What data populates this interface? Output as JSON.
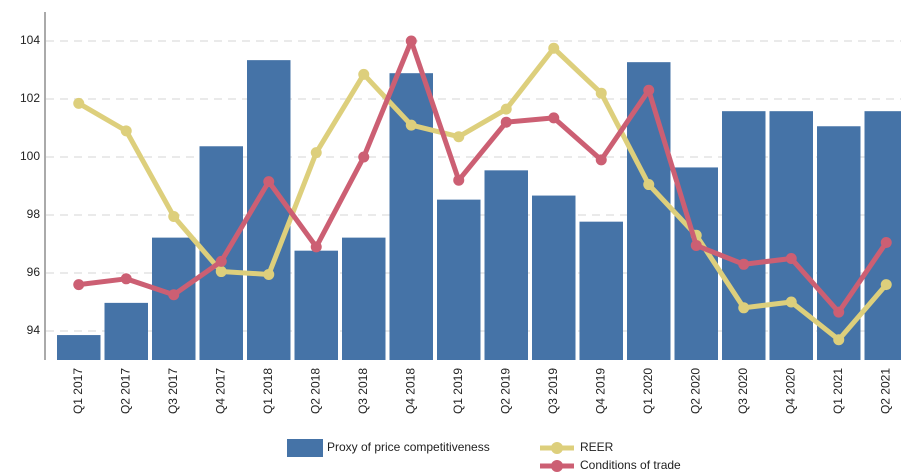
{
  "chart_data": {
    "type": "bar_line",
    "categories": [
      "Q1 2017",
      "Q2 2017",
      "Q3 2017",
      "Q4 2017",
      "Q1 2018",
      "Q2 2018",
      "Q3 2018",
      "Q4 2018",
      "Q1 2019",
      "Q2 2019",
      "Q3 2019",
      "Q4 2019",
      "Q1 2020",
      "Q2 2020",
      "Q3 2020",
      "Q4 2020",
      "Q1 2021",
      "Q2 2021"
    ],
    "series": [
      {
        "name": "Proxy of price competitiveness",
        "type": "bar",
        "color": "#4573a7",
        "values": [
          93.86,
          94.97,
          97.22,
          100.37,
          103.34,
          96.77,
          97.22,
          102.89,
          98.53,
          99.54,
          98.67,
          97.77,
          103.27,
          99.64,
          101.58,
          101.58,
          101.06,
          101.58
        ]
      },
      {
        "name": "REER",
        "type": "line",
        "color": "#ddcf7c",
        "values": [
          101.85,
          100.9,
          97.95,
          96.05,
          95.95,
          100.15,
          102.85,
          101.1,
          100.7,
          101.65,
          103.75,
          102.2,
          99.05,
          97.3,
          94.8,
          95.0,
          93.7,
          95.6
        ]
      },
      {
        "name": "Conditions of trade",
        "type": "line",
        "color": "#cc5f73",
        "values": [
          95.6,
          95.8,
          95.25,
          96.4,
          99.15,
          96.9,
          100.0,
          104.0,
          99.2,
          101.2,
          101.35,
          99.9,
          102.3,
          96.95,
          96.3,
          96.5,
          94.65,
          97.05
        ]
      }
    ],
    "ylim": [
      93,
      105
    ],
    "yticks": [
      94,
      96,
      98,
      100,
      102,
      104
    ],
    "grid": true
  }
}
